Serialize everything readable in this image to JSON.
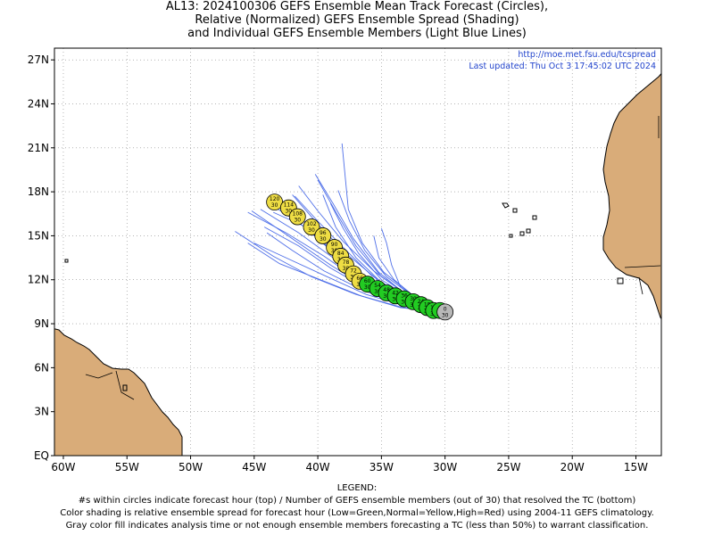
{
  "title": {
    "line1": "AL13: 2024100306 GEFS Ensemble Mean Track Forecast (Circles),",
    "line2": "Relative (Normalized) GEFS Ensemble Spread (Shading)",
    "line3": "and Individual GEFS Ensemble Members (Light Blue Lines)"
  },
  "source": {
    "url": "http://moe.met.fsu.edu/tcspread",
    "updated": "Last updated: Thu Oct  3 17:45:02 UTC 2024"
  },
  "axes": {
    "lon_labels": [
      "60W",
      "55W",
      "50W",
      "45W",
      "40W",
      "35W",
      "30W",
      "25W",
      "20W",
      "15W"
    ],
    "lat_labels": [
      "EQ",
      "3N",
      "6N",
      "9N",
      "12N",
      "15N",
      "18N",
      "21N",
      "24N",
      "27N"
    ]
  },
  "legend": {
    "heading": "LEGEND:",
    "line1": "#s within circles indicate forecast hour (top) / Number of GEFS ensemble members (out of 30) that resolved the TC (bottom)",
    "line2": "Color shading is relative ensemble spread for forecast hour (Low=Green,Normal=Yellow,High=Red) using 2004-11 GEFS climatology.",
    "line3": "Gray color fill indicates analysis time or not enough ensemble members forecasting a TC (less than 50%) to warrant classification."
  },
  "colors": {
    "land": "#d9ac79",
    "tracks": "#4f6fe8",
    "low_spread": "#22cc22",
    "normal_spread": "#eedd44",
    "analysis": "#b8b8b8",
    "link": "#2244cc"
  },
  "chart_data": {
    "type": "scatter",
    "x_range_lon": [
      -60.7,
      -13.0
    ],
    "y_range_lat": [
      0,
      27.8
    ],
    "mean_track": [
      {
        "hour": "0",
        "members": "30",
        "lon": -30.0,
        "lat": 9.8,
        "spread": "analysis"
      },
      {
        "hour": "6",
        "members": "30",
        "lon": -30.4,
        "lat": 9.9,
        "spread": "low"
      },
      {
        "hour": "12",
        "members": "30",
        "lon": -30.9,
        "lat": 9.9,
        "spread": "low"
      },
      {
        "hour": "18",
        "members": "30",
        "lon": -31.4,
        "lat": 10.1,
        "spread": "low"
      },
      {
        "hour": "24",
        "members": "30",
        "lon": -31.9,
        "lat": 10.3,
        "spread": "low"
      },
      {
        "hour": "30",
        "members": "30",
        "lon": -32.5,
        "lat": 10.5,
        "spread": "low"
      },
      {
        "hour": "36",
        "members": "30",
        "lon": -33.2,
        "lat": 10.7,
        "spread": "low"
      },
      {
        "hour": "42",
        "members": "30",
        "lon": -33.9,
        "lat": 10.9,
        "spread": "low"
      },
      {
        "hour": "48",
        "members": "30",
        "lon": -34.6,
        "lat": 11.1,
        "spread": "low"
      },
      {
        "hour": "54",
        "members": "30",
        "lon": -35.3,
        "lat": 11.4,
        "spread": "low"
      },
      {
        "hour": "60",
        "members": "30",
        "lon": -36.1,
        "lat": 11.7,
        "spread": "low"
      },
      {
        "hour": "66",
        "members": "30",
        "lon": -36.7,
        "lat": 11.9,
        "spread": "normal"
      },
      {
        "hour": "72",
        "members": "30",
        "lon": -37.2,
        "lat": 12.4,
        "spread": "normal"
      },
      {
        "hour": "78",
        "members": "30",
        "lon": -37.8,
        "lat": 13.0,
        "spread": "normal"
      },
      {
        "hour": "84",
        "members": "30",
        "lon": -38.2,
        "lat": 13.6,
        "spread": "normal"
      },
      {
        "hour": "90",
        "members": "30",
        "lon": -38.7,
        "lat": 14.2,
        "spread": "normal"
      },
      {
        "hour": "96",
        "members": "30",
        "lon": -39.6,
        "lat": 15.0,
        "spread": "normal"
      },
      {
        "hour": "102",
        "members": "30",
        "lon": -40.5,
        "lat": 15.6,
        "spread": "normal"
      },
      {
        "hour": "108",
        "members": "30",
        "lon": -41.6,
        "lat": 16.3,
        "spread": "normal"
      },
      {
        "hour": "114",
        "members": "30",
        "lon": -42.3,
        "lat": 16.9,
        "spread": "normal"
      },
      {
        "hour": "120",
        "members": "30",
        "lon": -43.4,
        "lat": 17.3,
        "spread": "normal"
      }
    ],
    "member_tracks": [
      [
        [
          -30.0,
          9.8
        ],
        [
          -33.0,
          10.3
        ],
        [
          -36.0,
          11.4
        ],
        [
          -39.0,
          13.0
        ],
        [
          -42.0,
          14.8
        ],
        [
          -45.2,
          16.7
        ]
      ],
      [
        [
          -30.0,
          9.8
        ],
        [
          -33.2,
          10.4
        ],
        [
          -36.5,
          11.8
        ],
        [
          -39.5,
          13.6
        ],
        [
          -42.5,
          15.2
        ],
        [
          -45.5,
          16.6
        ]
      ],
      [
        [
          -30.0,
          9.8
        ],
        [
          -33.0,
          10.6
        ],
        [
          -36.0,
          12.0
        ],
        [
          -38.8,
          14.0
        ],
        [
          -41.5,
          15.9
        ],
        [
          -44.0,
          17.3
        ]
      ],
      [
        [
          -30.0,
          9.8
        ],
        [
          -32.8,
          10.5
        ],
        [
          -35.5,
          11.6
        ],
        [
          -38.0,
          13.2
        ],
        [
          -40.2,
          15.0
        ],
        [
          -42.3,
          17.4
        ]
      ],
      [
        [
          -30.0,
          9.8
        ],
        [
          -33.1,
          10.2
        ],
        [
          -36.2,
          11.0
        ],
        [
          -39.5,
          12.3
        ],
        [
          -42.5,
          13.5
        ],
        [
          -45.0,
          14.5
        ]
      ],
      [
        [
          -30.0,
          9.8
        ],
        [
          -32.5,
          10.7
        ],
        [
          -35.0,
          12.2
        ],
        [
          -37.0,
          14.3
        ],
        [
          -38.5,
          16.5
        ],
        [
          -40.0,
          18.8
        ]
      ],
      [
        [
          -30.0,
          9.8
        ],
        [
          -32.5,
          10.6
        ],
        [
          -35.0,
          12.0
        ],
        [
          -36.8,
          13.8
        ],
        [
          -38.0,
          15.5
        ],
        [
          -39.0,
          17.2
        ]
      ],
      [
        [
          -30.0,
          9.8
        ],
        [
          -32.5,
          10.9
        ],
        [
          -34.8,
          12.5
        ],
        [
          -36.5,
          14.5
        ],
        [
          -37.6,
          16.8
        ],
        [
          -38.1,
          21.3
        ]
      ],
      [
        [
          -30.0,
          9.8
        ],
        [
          -32.2,
          10.7
        ],
        [
          -34.0,
          12.0
        ],
        [
          -35.2,
          13.5
        ],
        [
          -35.6,
          15.0
        ]
      ],
      [
        [
          -30.0,
          9.8
        ],
        [
          -32.0,
          10.5
        ],
        [
          -33.5,
          11.5
        ],
        [
          -34.2,
          13.0
        ],
        [
          -34.6,
          14.5
        ],
        [
          -35.0,
          15.5
        ]
      ],
      [
        [
          -30.0,
          9.8
        ],
        [
          -33.0,
          10.4
        ],
        [
          -36.0,
          11.8
        ],
        [
          -38.8,
          13.5
        ],
        [
          -41.5,
          15.2
        ],
        [
          -44.5,
          16.8
        ]
      ],
      [
        [
          -30.0,
          9.8
        ],
        [
          -33.3,
          10.1
        ],
        [
          -36.6,
          10.9
        ],
        [
          -39.8,
          12.0
        ],
        [
          -43.0,
          13.1
        ],
        [
          -45.5,
          14.5
        ]
      ],
      [
        [
          -30.0,
          9.8
        ],
        [
          -33.0,
          10.7
        ],
        [
          -35.8,
          12.3
        ],
        [
          -38.0,
          14.2
        ],
        [
          -40.0,
          16.0
        ],
        [
          -41.8,
          17.7
        ]
      ],
      [
        [
          -30.0,
          9.8
        ],
        [
          -33.5,
          10.1
        ],
        [
          -37.0,
          11.0
        ],
        [
          -40.5,
          12.2
        ],
        [
          -43.5,
          13.6
        ],
        [
          -46.5,
          15.3
        ]
      ],
      [
        [
          -30.0,
          9.8
        ],
        [
          -32.8,
          10.8
        ],
        [
          -35.2,
          12.5
        ],
        [
          -37.2,
          14.8
        ],
        [
          -38.8,
          17.2
        ],
        [
          -40.2,
          19.2
        ]
      ],
      [
        [
          -30.0,
          9.8
        ],
        [
          -33.2,
          10.2
        ],
        [
          -36.5,
          11.3
        ],
        [
          -39.5,
          12.6
        ],
        [
          -42.0,
          14.0
        ],
        [
          -44.0,
          15.2
        ]
      ],
      [
        [
          -30.0,
          9.8
        ],
        [
          -32.7,
          10.6
        ],
        [
          -35.3,
          12.0
        ],
        [
          -37.8,
          13.8
        ],
        [
          -40.0,
          15.8
        ],
        [
          -42.0,
          17.8
        ]
      ],
      [
        [
          -30.0,
          9.8
        ],
        [
          -32.6,
          10.6
        ],
        [
          -35.0,
          11.8
        ],
        [
          -37.0,
          13.5
        ],
        [
          -38.6,
          15.6
        ],
        [
          -39.6,
          17.8
        ]
      ],
      [
        [
          -30.0,
          9.8
        ],
        [
          -33.0,
          10.3
        ],
        [
          -36.0,
          11.3
        ],
        [
          -39.0,
          12.8
        ],
        [
          -41.5,
          14.3
        ],
        [
          -44.2,
          15.6
        ]
      ],
      [
        [
          -30.0,
          9.8
        ],
        [
          -32.9,
          10.9
        ],
        [
          -35.6,
          12.6
        ],
        [
          -38.0,
          14.6
        ],
        [
          -40.0,
          16.7
        ],
        [
          -41.5,
          18.4
        ]
      ],
      [
        [
          -30.0,
          9.8
        ],
        [
          -32.4,
          10.8
        ],
        [
          -34.6,
          12.2
        ],
        [
          -36.3,
          14.0
        ],
        [
          -37.5,
          16.0
        ],
        [
          -38.4,
          18.1
        ]
      ],
      [
        [
          -30.0,
          9.8
        ],
        [
          -33.0,
          10.5
        ],
        [
          -36.0,
          11.9
        ],
        [
          -38.7,
          13.8
        ],
        [
          -41.2,
          15.7
        ],
        [
          -43.5,
          16.6
        ]
      ]
    ]
  }
}
